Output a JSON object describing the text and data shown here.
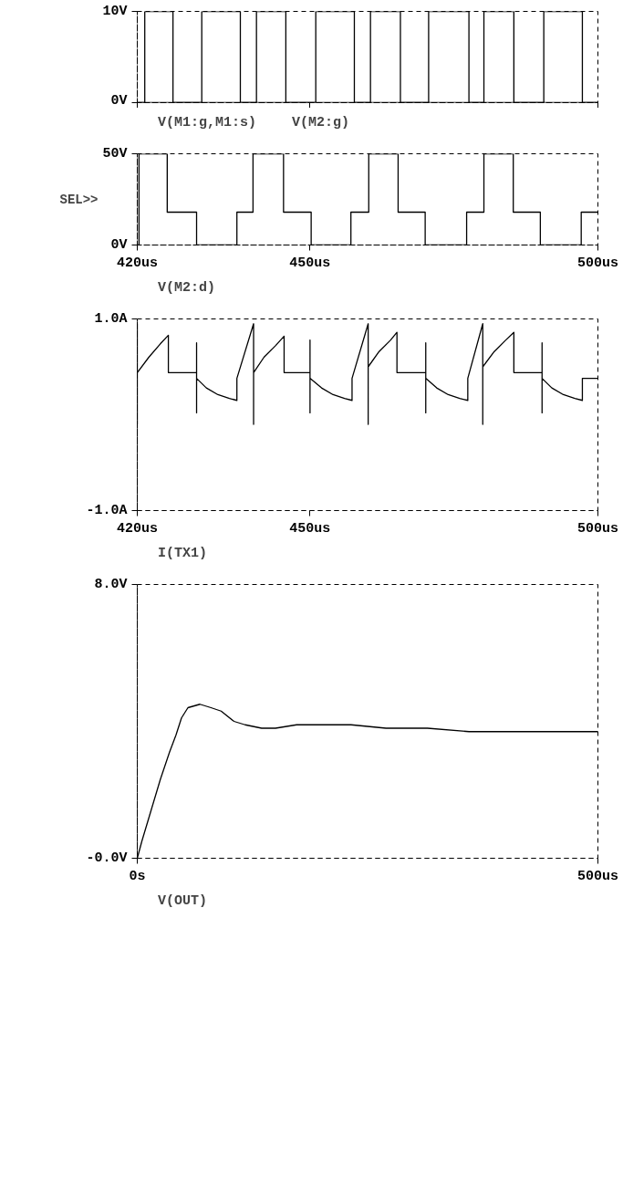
{
  "chart_data": [
    {
      "type": "step",
      "xlim": [
        420,
        500
      ],
      "ylim": [
        0,
        10
      ],
      "xticks": [
        420,
        450,
        500
      ],
      "yticks": [
        {
          "value": 0,
          "label": "0V"
        },
        {
          "value": 10,
          "label": "10V"
        }
      ],
      "tick_labels": "y",
      "grid": false,
      "legend": "bottom",
      "line_style": "solid",
      "series": [
        {
          "name": "V(M1:g,M1:s)",
          "color": "#000000",
          "x": [
            420,
            421.3,
            426.2,
            440.7,
            445.8,
            460.5,
            465.7,
            480.2,
            485.4,
            500
          ],
          "values": [
            0,
            10,
            0,
            10,
            0,
            10,
            0,
            10,
            0,
            0
          ]
        },
        {
          "name": "V(M2:g)",
          "color": "#000000",
          "x": [
            420,
            431.2,
            437.9,
            451.0,
            457.7,
            470.6,
            477.6,
            490.6,
            497.3,
            500
          ],
          "values": [
            0,
            10,
            0,
            10,
            0,
            10,
            0,
            10,
            0,
            0
          ]
        }
      ]
    },
    {
      "type": "step",
      "xlim": [
        420,
        500
      ],
      "ylim": [
        0,
        50
      ],
      "xticks": [
        {
          "value": 420,
          "label": "420us"
        },
        {
          "value": 450,
          "label": "450us"
        },
        {
          "value": 500,
          "label": "500us"
        }
      ],
      "yticks": [
        {
          "value": 0,
          "label": "0V"
        },
        {
          "value": 50,
          "label": "50V"
        }
      ],
      "grid": false,
      "legend": "bottom",
      "line_style": "solid",
      "annotations": [
        "SEL>>"
      ],
      "series": [
        {
          "name": "V(M2:d)",
          "color": "#000000",
          "x": [
            420,
            420.3,
            425.2,
            430.3,
            437.3,
            440.1,
            445.4,
            450.2,
            457.1,
            460.2,
            465.3,
            470.0,
            477.2,
            480.2,
            485.3,
            490.0,
            497.1,
            500
          ],
          "values": [
            0,
            50,
            18,
            0,
            18,
            50,
            18,
            0,
            18,
            50,
            18,
            0,
            18,
            50,
            18,
            0,
            18,
            18
          ]
        }
      ]
    },
    {
      "type": "line",
      "xlim": [
        420,
        500
      ],
      "ylim": [
        -1,
        1
      ],
      "xticks": [
        {
          "value": 420,
          "label": "420us"
        },
        {
          "value": 450,
          "label": "450us"
        },
        {
          "value": 500,
          "label": "500us"
        }
      ],
      "yticks": [
        {
          "value": -1,
          "label": "-1.0A"
        },
        {
          "value": 1,
          "label": "1.0A"
        }
      ],
      "grid": false,
      "legend": "bottom",
      "line_style": "solid",
      "series": [
        {
          "name": "I(TX1)",
          "color": "#000000",
          "x": [
            420,
            420,
            420,
            422,
            424,
            425.4,
            425.4,
            430.3,
            430.3,
            430.3,
            430.3,
            432,
            434,
            436,
            437.3,
            437.3,
            440.2,
            440.2,
            440.2,
            442,
            444,
            445.5,
            445.5,
            450.0,
            450.0,
            450.0,
            450.0,
            452,
            454,
            456,
            457.3,
            457.3,
            460.1,
            460.1,
            460.1,
            462,
            464,
            465.1,
            465.1,
            470.1,
            470.1,
            470.1,
            470.1,
            472,
            474,
            476,
            477.4,
            477.4,
            480,
            480,
            480,
            482,
            484,
            485.4,
            485.4,
            490.3,
            490.3,
            490.3,
            490.3,
            492,
            494,
            496,
            497.3,
            497.3,
            500
          ],
          "values": [
            0.95,
            -0.1,
            0.44,
            0.6,
            0.74,
            0.83,
            0.44,
            0.44,
            0.75,
            0.02,
            0.38,
            0.28,
            0.21,
            0.17,
            0.15,
            0.38,
            0.95,
            -0.1,
            0.44,
            0.6,
            0.72,
            0.82,
            0.44,
            0.44,
            0.78,
            0.02,
            0.38,
            0.28,
            0.21,
            0.17,
            0.15,
            0.38,
            0.95,
            -0.1,
            0.5,
            0.66,
            0.78,
            0.86,
            0.44,
            0.44,
            0.75,
            0.02,
            0.38,
            0.28,
            0.21,
            0.17,
            0.15,
            0.38,
            0.95,
            -0.1,
            0.5,
            0.66,
            0.78,
            0.86,
            0.44,
            0.44,
            0.75,
            0.02,
            0.38,
            0.28,
            0.21,
            0.17,
            0.15,
            0.38,
            0.38
          ]
        }
      ]
    },
    {
      "type": "line",
      "xlim": [
        0,
        500
      ],
      "ylim": [
        0,
        8
      ],
      "xticks": [
        {
          "value": 0,
          "label": "0s"
        },
        {
          "value": 500,
          "label": "500us"
        }
      ],
      "yticks": [
        {
          "value": 0,
          "label": "-0.0V"
        },
        {
          "value": 8,
          "label": "8.0V"
        }
      ],
      "grid": false,
      "legend": "bottom",
      "line_style": "solid",
      "series": [
        {
          "name": "V(OUT)",
          "color": "#000000",
          "x": [
            0,
            5,
            15,
            25,
            35,
            42,
            48,
            55,
            68,
            80,
            91,
            105,
            117,
            135,
            150,
            173,
            200,
            232,
            270,
            315,
            360,
            406,
            450,
            500
          ],
          "values": [
            0.0,
            0.5,
            1.4,
            2.3,
            3.1,
            3.6,
            4.1,
            4.4,
            4.5,
            4.4,
            4.3,
            4.0,
            3.9,
            3.8,
            3.8,
            3.9,
            3.9,
            3.9,
            3.8,
            3.8,
            3.7,
            3.7,
            3.7,
            3.7
          ]
        }
      ]
    }
  ]
}
